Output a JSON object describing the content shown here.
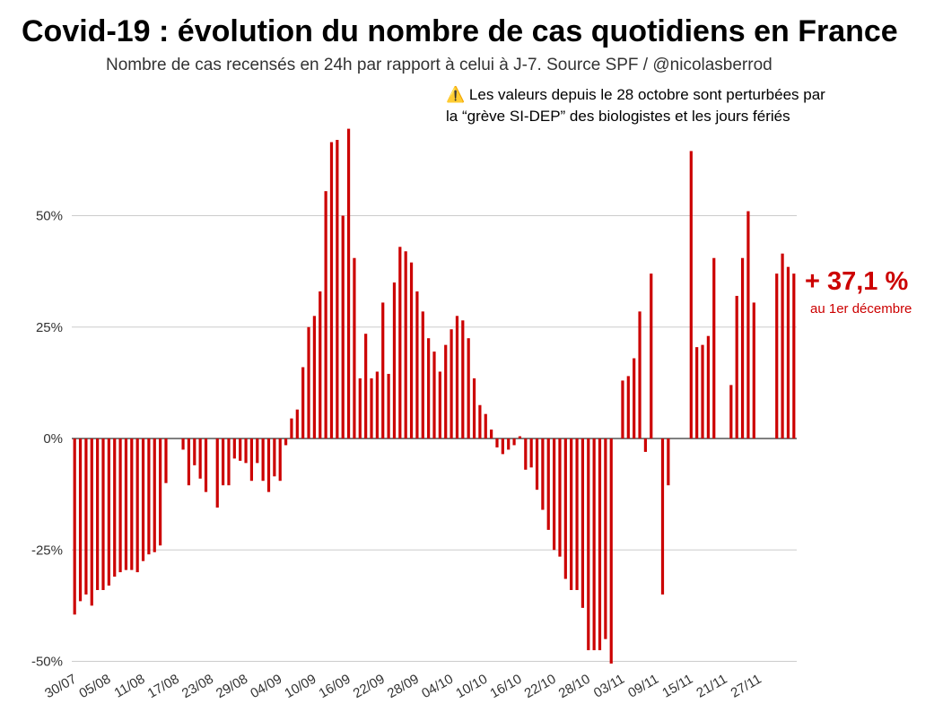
{
  "title": "Covid-19 : évolution du nombre de cas quotidiens en France",
  "subtitle": "Nombre de cas recensés en 24h par rapport à celui à J-7. Source SPF / @nicolasberrod",
  "note": {
    "icon": "warning-icon",
    "line1": "Les valeurs depuis le 28 octobre sont perturbées par",
    "line2": "la “grève SI-DEP” des biologistes et les jours fériés"
  },
  "annotation": {
    "value": "+ 37,1 %",
    "label": "au 1er décembre"
  },
  "colors": {
    "bar": "#cc0000",
    "grid": "#cccccc",
    "zero_line": "#000000"
  },
  "chart_data": {
    "type": "bar",
    "title": "Covid-19 : évolution du nombre de cas quotidiens en France",
    "ylabel": "",
    "ylim": [
      -50,
      75
    ],
    "yticks": [
      {
        "value": 50,
        "label": "50%"
      },
      {
        "value": 25,
        "label": "25%"
      },
      {
        "value": 0,
        "label": "0%"
      },
      {
        "value": -25,
        "label": "-25%"
      },
      {
        "value": -50,
        "label": "-50%"
      }
    ],
    "xtick_labels": [
      "30/07",
      "05/08",
      "11/08",
      "17/08",
      "23/08",
      "29/08",
      "04/09",
      "10/09",
      "16/09",
      "22/09",
      "28/09",
      "04/10",
      "10/10",
      "16/10",
      "22/10",
      "28/10",
      "03/11",
      "09/11",
      "15/11",
      "21/11",
      "27/11"
    ],
    "xtick_every": 6,
    "start_date": "30/07",
    "end_date": "01/12",
    "values": [
      -39.5,
      -36.5,
      -35,
      -37.5,
      -34,
      -34,
      -33,
      -31,
      -30,
      -29.5,
      -29.5,
      -30,
      -27.5,
      -26,
      -25.5,
      -24,
      -10,
      null,
      null,
      -2.5,
      -10.5,
      -6,
      -9,
      -12,
      null,
      -15.5,
      -10.5,
      -10.5,
      -4.5,
      -5,
      -5.5,
      -9.5,
      -5.5,
      -9.5,
      -12,
      -8.5,
      -9.5,
      -1.5,
      4.5,
      6.5,
      16,
      25,
      27.5,
      33,
      55.5,
      66.5,
      67,
      50,
      69.5,
      40.5,
      13.5,
      23.5,
      13.5,
      15,
      30.5,
      14.5,
      35,
      43,
      42,
      39.5,
      33,
      28.5,
      22.5,
      19.5,
      15,
      21,
      24.5,
      27.5,
      26.5,
      22.5,
      13.5,
      7.5,
      5.5,
      2,
      -2,
      -3.5,
      -2.5,
      -1.5,
      0.5,
      -7,
      -6.5,
      -11.5,
      -16,
      -20.5,
      -25,
      -26.5,
      -31.5,
      -34,
      -34,
      -38,
      -47.5,
      -47.5,
      -47.5,
      -45,
      -50.5,
      null,
      13,
      14,
      18,
      28.5,
      -3,
      37,
      null,
      -35,
      -10.5,
      null,
      null,
      null,
      64.5,
      20.5,
      21,
      23,
      40.5,
      null,
      null,
      12,
      32,
      40.5,
      51,
      30.5,
      null,
      null,
      null,
      37,
      41.5,
      38.5,
      37
    ]
  }
}
